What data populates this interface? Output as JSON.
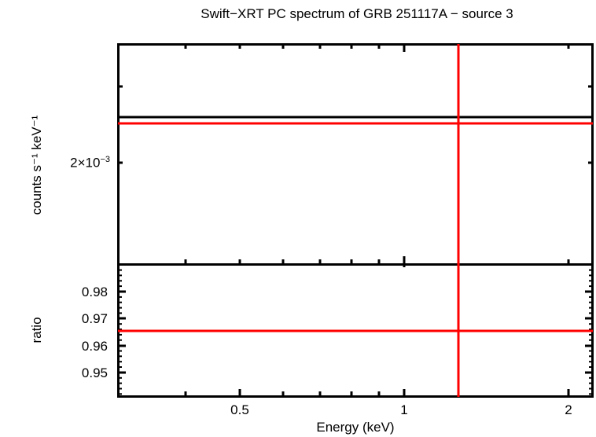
{
  "chart_data": [
    {
      "panel": "top",
      "type": "line",
      "title": "Swift−XRT PC spectrum of GRB 251117A − source 3",
      "xlabel": "",
      "ylabel": "counts s⁻¹ keV⁻¹",
      "xscale": "log",
      "yscale": "log",
      "xlim": [
        0.3,
        2.22
      ],
      "ytick_labels": [
        "2×10⁻³"
      ],
      "grid": false,
      "series": [
        {
          "name": "data",
          "color": "#000000",
          "x": [
            0.3,
            2.22
          ],
          "y": [
            0.00232,
            0.00232
          ]
        },
        {
          "name": "model",
          "color": "#ff0000",
          "x": [
            0.3,
            2.22
          ],
          "y": [
            0.00224,
            0.00224
          ]
        },
        {
          "name": "data-bin-xerr",
          "color": "#ff0000",
          "x": [
            1.257,
            1.257
          ],
          "y": "full-range vertical"
        }
      ]
    },
    {
      "panel": "bottom",
      "type": "line",
      "xlabel": "Energy (keV)",
      "ylabel": "ratio",
      "xscale": "log",
      "xlim": [
        0.3,
        2.22
      ],
      "ylim": [
        0.94,
        0.99
      ],
      "xtick_labels": [
        "0.5",
        "1",
        "2"
      ],
      "xticks": [
        0.5,
        1,
        2
      ],
      "ytick_labels": [
        "0.95",
        "0.96",
        "0.97",
        "0.98"
      ],
      "yticks": [
        0.95,
        0.96,
        0.97,
        0.98
      ],
      "grid": false,
      "series": [
        {
          "name": "ratio",
          "color": "#ff0000",
          "x": [
            0.3,
            2.22
          ],
          "y": [
            0.9654,
            0.9654
          ]
        },
        {
          "name": "ratio-xerr",
          "color": "#ff0000",
          "x": [
            1.257,
            1.257
          ],
          "y": "full-range vertical"
        }
      ]
    }
  ],
  "labels": {
    "title": "Swift−XRT PC spectrum of GRB 251117A − source 3",
    "top_ylabel": "counts s⁻¹ keV⁻¹",
    "top_ytick_mantissa": "2×10",
    "top_ytick_exp": "−3",
    "bottom_ylabel": "ratio",
    "xlabel": "Energy (keV)",
    "xticks": [
      "0.5",
      "1",
      "2"
    ],
    "yticks_bottom": [
      "0.98",
      "0.97",
      "0.96",
      "0.95"
    ]
  },
  "colors": {
    "frame": "#000000",
    "model": "#ff0000",
    "data": "#000000"
  }
}
